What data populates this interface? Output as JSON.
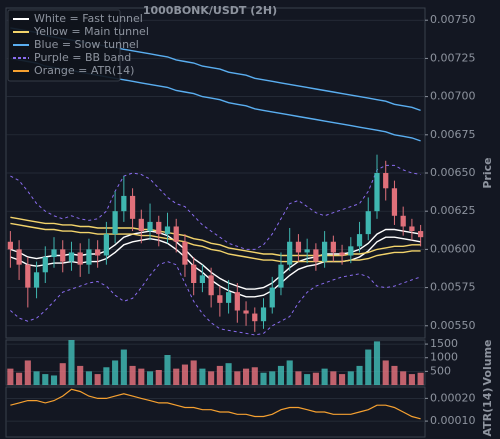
{
  "chart_data": [
    {
      "type": "candlestick",
      "title": "1000BONK/USDT (2H)",
      "ylabel": "Price",
      "up_color": "#3fb6b0",
      "down_color": "#e0707a",
      "ylim": [
        0.00542,
        0.00758
      ],
      "yticks": [
        {
          "value": 0.0055,
          "label": "0.00550"
        },
        {
          "value": 0.00575,
          "label": "0.00575"
        },
        {
          "value": 0.006,
          "label": "0.00600"
        },
        {
          "value": 0.00625,
          "label": "0.00625"
        },
        {
          "value": 0.0065,
          "label": "0.00650"
        },
        {
          "value": 0.00675,
          "label": "0.00675"
        },
        {
          "value": 0.007,
          "label": "0.00700"
        },
        {
          "value": 0.00725,
          "label": "0.00725"
        },
        {
          "value": 0.0075,
          "label": "0.00750"
        }
      ],
      "grid": true,
      "legend": "upper left",
      "open": [
        0.00605,
        0.006,
        0.0059,
        0.00575,
        0.00585,
        0.00595,
        0.006,
        0.00592,
        0.00598,
        0.0059,
        0.006,
        0.00596,
        0.0061,
        0.00625,
        0.00635,
        0.0062,
        0.00612,
        0.00618,
        0.0061,
        0.00615,
        0.00605,
        0.0059,
        0.00578,
        0.00583,
        0.0057,
        0.00565,
        0.00572,
        0.0056,
        0.00558,
        0.00553,
        0.00562,
        0.00575,
        0.0059,
        0.00605,
        0.00598,
        0.006,
        0.00592,
        0.00605,
        0.00598,
        0.00596,
        0.00602,
        0.0061,
        0.00625,
        0.0065,
        0.0064,
        0.00622,
        0.00615,
        0.00612
      ],
      "high": [
        0.00612,
        0.00606,
        0.00595,
        0.00592,
        0.00602,
        0.00608,
        0.00606,
        0.00605,
        0.00604,
        0.00607,
        0.00606,
        0.00618,
        0.00638,
        0.00648,
        0.0064,
        0.00626,
        0.0063,
        0.00622,
        0.00624,
        0.0062,
        0.0061,
        0.00595,
        0.0059,
        0.00588,
        0.00576,
        0.0058,
        0.00578,
        0.00566,
        0.00562,
        0.00568,
        0.00582,
        0.00598,
        0.00614,
        0.0061,
        0.00607,
        0.00604,
        0.00612,
        0.00609,
        0.00603,
        0.00608,
        0.00618,
        0.00634,
        0.00662,
        0.00658,
        0.00645,
        0.00628,
        0.0062,
        0.00616
      ],
      "low": [
        0.00588,
        0.0058,
        0.00562,
        0.00568,
        0.00578,
        0.00588,
        0.00585,
        0.00586,
        0.00582,
        0.00584,
        0.00588,
        0.0059,
        0.00604,
        0.00618,
        0.00612,
        0.00604,
        0.00606,
        0.00602,
        0.00604,
        0.00598,
        0.00582,
        0.0057,
        0.00572,
        0.00562,
        0.00556,
        0.00558,
        0.00552,
        0.0055,
        0.00546,
        0.00548,
        0.00558,
        0.0057,
        0.00586,
        0.00592,
        0.00591,
        0.00586,
        0.00588,
        0.00592,
        0.0059,
        0.00591,
        0.00598,
        0.00606,
        0.0062,
        0.00632,
        0.00616,
        0.00609,
        0.00606,
        0.00602
      ],
      "close": [
        0.006,
        0.0059,
        0.00575,
        0.00585,
        0.00595,
        0.006,
        0.00592,
        0.00598,
        0.0059,
        0.006,
        0.00596,
        0.0061,
        0.00625,
        0.00635,
        0.0062,
        0.00612,
        0.00618,
        0.0061,
        0.00615,
        0.00605,
        0.0059,
        0.00578,
        0.00583,
        0.0057,
        0.00565,
        0.00572,
        0.0056,
        0.00558,
        0.00553,
        0.00562,
        0.00575,
        0.0059,
        0.00605,
        0.00598,
        0.006,
        0.00592,
        0.00605,
        0.00598,
        0.00596,
        0.00602,
        0.0061,
        0.00625,
        0.0065,
        0.0064,
        0.00622,
        0.00615,
        0.00612,
        0.00608
      ],
      "series": [
        {
          "name": "White = Fast tunnel",
          "color": "#ffffff",
          "dashed": false,
          "upper": [
            0.006,
            0.00598,
            0.00595,
            0.00594,
            0.00595,
            0.00596,
            0.00596,
            0.00597,
            0.00596,
            0.00597,
            0.00597,
            0.00599,
            0.00603,
            0.00608,
            0.0061,
            0.00611,
            0.00612,
            0.00611,
            0.00609,
            0.00605,
            0.006,
            0.00594,
            0.0059,
            0.00585,
            0.00581,
            0.00578,
            0.00576,
            0.00574,
            0.00574,
            0.00575,
            0.00578,
            0.00583,
            0.00588,
            0.00592,
            0.00594,
            0.00595,
            0.00597,
            0.00597,
            0.00597,
            0.00598,
            0.006,
            0.00604,
            0.0061,
            0.00613,
            0.00613,
            0.00612,
            0.00611,
            0.0061
          ],
          "lower": [
            0.00595,
            0.00593,
            0.0059,
            0.00589,
            0.0059,
            0.00591,
            0.00591,
            0.00592,
            0.00591,
            0.00592,
            0.00592,
            0.00594,
            0.00598,
            0.00603,
            0.00605,
            0.00606,
            0.00607,
            0.00606,
            0.00604,
            0.006,
            0.00595,
            0.00589,
            0.00585,
            0.0058,
            0.00576,
            0.00573,
            0.00571,
            0.00569,
            0.00569,
            0.0057,
            0.00573,
            0.00578,
            0.00583,
            0.00587,
            0.00589,
            0.0059,
            0.00592,
            0.00592,
            0.00592,
            0.00593,
            0.00595,
            0.00599,
            0.00605,
            0.00608,
            0.00608,
            0.00607,
            0.00606,
            0.00605
          ]
        },
        {
          "name": "Yellow = Main tunnel",
          "color": "#f2d36b",
          "dashed": false,
          "upper": [
            0.00621,
            0.0062,
            0.00619,
            0.00618,
            0.00617,
            0.00617,
            0.00616,
            0.00616,
            0.00615,
            0.00615,
            0.00614,
            0.00614,
            0.00614,
            0.00614,
            0.00614,
            0.00613,
            0.00613,
            0.00612,
            0.00611,
            0.0061,
            0.00609,
            0.00607,
            0.00606,
            0.00604,
            0.00603,
            0.00601,
            0.006,
            0.00599,
            0.00598,
            0.00597,
            0.00597,
            0.00596,
            0.00596,
            0.00596,
            0.00596,
            0.00596,
            0.00596,
            0.00596,
            0.00596,
            0.00597,
            0.00597,
            0.00598,
            0.006,
            0.00601,
            0.00602,
            0.00602,
            0.00603,
            0.00603
          ],
          "lower": [
            0.00617,
            0.00616,
            0.00615,
            0.00614,
            0.00613,
            0.00613,
            0.00612,
            0.00612,
            0.00611,
            0.00611,
            0.0061,
            0.0061,
            0.0061,
            0.0061,
            0.0061,
            0.00609,
            0.00609,
            0.00608,
            0.00607,
            0.00606,
            0.00605,
            0.00603,
            0.00602,
            0.006,
            0.00599,
            0.00597,
            0.00596,
            0.00595,
            0.00594,
            0.00593,
            0.00593,
            0.00592,
            0.00592,
            0.00592,
            0.00592,
            0.00592,
            0.00592,
            0.00592,
            0.00592,
            0.00593,
            0.00593,
            0.00594,
            0.00596,
            0.00597,
            0.00598,
            0.00598,
            0.00599,
            0.00599
          ]
        },
        {
          "name": "Blue = Slow tunnel",
          "color": "#5aaef0",
          "dashed": false,
          "upper": [
            0.00745,
            0.00744,
            0.00743,
            0.00742,
            0.0074,
            0.00739,
            0.00738,
            0.00737,
            0.00736,
            0.00735,
            0.00734,
            0.00733,
            0.00732,
            0.00731,
            0.0073,
            0.00729,
            0.00728,
            0.00727,
            0.00726,
            0.00724,
            0.00723,
            0.00722,
            0.0072,
            0.00719,
            0.00718,
            0.00716,
            0.00715,
            0.00714,
            0.00712,
            0.00711,
            0.0071,
            0.00709,
            0.00708,
            0.00707,
            0.00706,
            0.00705,
            0.00704,
            0.00703,
            0.00702,
            0.00701,
            0.007,
            0.00699,
            0.00698,
            0.00697,
            0.00695,
            0.00694,
            0.00693,
            0.00691
          ],
          "lower": [
            0.00725,
            0.00724,
            0.00723,
            0.00722,
            0.0072,
            0.00719,
            0.00718,
            0.00717,
            0.00716,
            0.00715,
            0.00714,
            0.00713,
            0.00712,
            0.00711,
            0.0071,
            0.00709,
            0.00708,
            0.00707,
            0.00706,
            0.00704,
            0.00703,
            0.00702,
            0.007,
            0.00699,
            0.00698,
            0.00696,
            0.00695,
            0.00694,
            0.00692,
            0.00691,
            0.0069,
            0.00689,
            0.00688,
            0.00687,
            0.00686,
            0.00685,
            0.00684,
            0.00683,
            0.00682,
            0.00681,
            0.0068,
            0.00679,
            0.00678,
            0.00677,
            0.00675,
            0.00674,
            0.00673,
            0.00671
          ]
        },
        {
          "name": "Purple = BB band",
          "color": "#8a6cf0",
          "dashed": true,
          "upper": [
            0.00648,
            0.00645,
            0.00638,
            0.0063,
            0.00625,
            0.00622,
            0.0062,
            0.00622,
            0.0062,
            0.00619,
            0.0062,
            0.00625,
            0.00638,
            0.00648,
            0.0065,
            0.00649,
            0.00646,
            0.0064,
            0.00634,
            0.0063,
            0.00628,
            0.00622,
            0.00616,
            0.00612,
            0.00608,
            0.00604,
            0.00602,
            0.006,
            0.006,
            0.00603,
            0.0061,
            0.0062,
            0.0063,
            0.00632,
            0.00628,
            0.00624,
            0.00622,
            0.00624,
            0.00626,
            0.00628,
            0.0063,
            0.00638,
            0.00652,
            0.00655,
            0.00655,
            0.00652,
            0.0065,
            0.00649
          ],
          "lower": [
            0.0056,
            0.00555,
            0.00553,
            0.00555,
            0.0056,
            0.00566,
            0.00572,
            0.00574,
            0.00576,
            0.00578,
            0.00579,
            0.00576,
            0.0057,
            0.00566,
            0.00568,
            0.00575,
            0.00583,
            0.0059,
            0.00592,
            0.0059,
            0.00578,
            0.00566,
            0.00558,
            0.00552,
            0.00548,
            0.00547,
            0.00546,
            0.00545,
            0.00544,
            0.00545,
            0.0055,
            0.00553,
            0.00556,
            0.00565,
            0.00572,
            0.00576,
            0.00578,
            0.0058,
            0.00582,
            0.00583,
            0.00584,
            0.00582,
            0.00576,
            0.00575,
            0.00576,
            0.00578,
            0.0058,
            0.00582
          ]
        }
      ]
    },
    {
      "type": "bar",
      "ylabel": "Volume",
      "ylim": [
        0,
        1650
      ],
      "yticks": [
        500,
        1000,
        1500
      ],
      "values": [
        600,
        450,
        900,
        500,
        400,
        350,
        800,
        1650,
        700,
        500,
        400,
        650,
        900,
        1300,
        700,
        600,
        500,
        550,
        1100,
        600,
        750,
        900,
        600,
        500,
        700,
        800,
        500,
        600,
        650,
        450,
        500,
        700,
        900,
        500,
        400,
        450,
        600,
        500,
        400,
        500,
        700,
        1300,
        1600,
        900,
        700,
        500,
        400,
        450
      ]
    },
    {
      "type": "line",
      "ylabel": "ATR(14)",
      "ylim": [
        3e-05,
        0.00025
      ],
      "yticks": [
        {
          "value": 0.0001,
          "label": "0.00010"
        },
        {
          "value": 0.0002,
          "label": "0.00020"
        }
      ],
      "series": [
        {
          "name": "Orange = ATR(14)",
          "color": "#f5a030",
          "dashed": false,
          "values": [
            0.00017,
            0.00018,
            0.00019,
            0.00019,
            0.00018,
            0.00019,
            0.00021,
            0.00024,
            0.00023,
            0.00021,
            0.0002,
            0.0002,
            0.00021,
            0.00022,
            0.00021,
            0.0002,
            0.00019,
            0.00018,
            0.00018,
            0.00017,
            0.00016,
            0.00016,
            0.00015,
            0.00015,
            0.00014,
            0.00014,
            0.00013,
            0.00013,
            0.00012,
            0.00012,
            0.00013,
            0.00015,
            0.00016,
            0.00016,
            0.00015,
            0.00014,
            0.00014,
            0.00013,
            0.00013,
            0.00013,
            0.00014,
            0.00015,
            0.00017,
            0.00017,
            0.00016,
            0.00014,
            0.00012,
            0.00011
          ]
        }
      ]
    }
  ]
}
